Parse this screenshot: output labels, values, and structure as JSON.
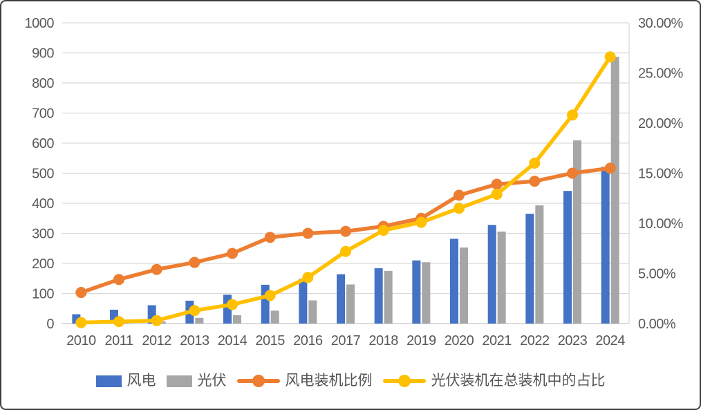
{
  "chart_data": {
    "type": "combo",
    "subtype": "clustered-bars-with-lines",
    "title": "",
    "categories": [
      "2010",
      "2011",
      "2012",
      "2013",
      "2014",
      "2015",
      "2016",
      "2017",
      "2018",
      "2019",
      "2020",
      "2021",
      "2022",
      "2023",
      "2024"
    ],
    "bar_series": [
      {
        "name": "风电",
        "color": "#4472C4",
        "axis": "left",
        "values": [
          31,
          46,
          61,
          76,
          96,
          129,
          149,
          164,
          184,
          210,
          282,
          328,
          365,
          441,
          521
        ]
      },
      {
        "name": "光伏",
        "color": "#A6A6A6",
        "axis": "left",
        "values": [
          1,
          3,
          7,
          19,
          28,
          43,
          77,
          130,
          175,
          204,
          253,
          306,
          393,
          609,
          887
        ]
      }
    ],
    "line_series": [
      {
        "name": "风电装机比例",
        "color": "#ED7D31",
        "axis": "right",
        "values": [
          3.1,
          4.4,
          5.4,
          6.1,
          7.0,
          8.6,
          9.0,
          9.2,
          9.7,
          10.5,
          12.8,
          13.9,
          14.2,
          15.0,
          15.5
        ]
      },
      {
        "name": "光伏装机在总装机中的占比",
        "color": "#FFC000",
        "axis": "right",
        "values": [
          0.1,
          0.2,
          0.3,
          1.3,
          1.9,
          2.8,
          4.6,
          7.2,
          9.3,
          10.1,
          11.5,
          12.9,
          16.0,
          20.8,
          26.6
        ]
      }
    ],
    "left_axis": {
      "min": 0,
      "max": 1000,
      "step": 100,
      "tick_labels": [
        "0",
        "100",
        "200",
        "300",
        "400",
        "500",
        "600",
        "700",
        "800",
        "900",
        "1000"
      ]
    },
    "right_axis": {
      "min": 0,
      "max": 30,
      "step": 5,
      "tick_labels": [
        "0.00%",
        "5.00%",
        "10.00%",
        "15.00%",
        "20.00%",
        "25.00%",
        "30.00%"
      ]
    },
    "grid": "horizontal",
    "legend_position": "bottom"
  },
  "colors": {
    "gridline": "#D9D9D9",
    "baseline": "#C8C8C8",
    "axis_text": "#595959",
    "frame_border": "#3D3D3D",
    "background": "#FFFFFF"
  }
}
